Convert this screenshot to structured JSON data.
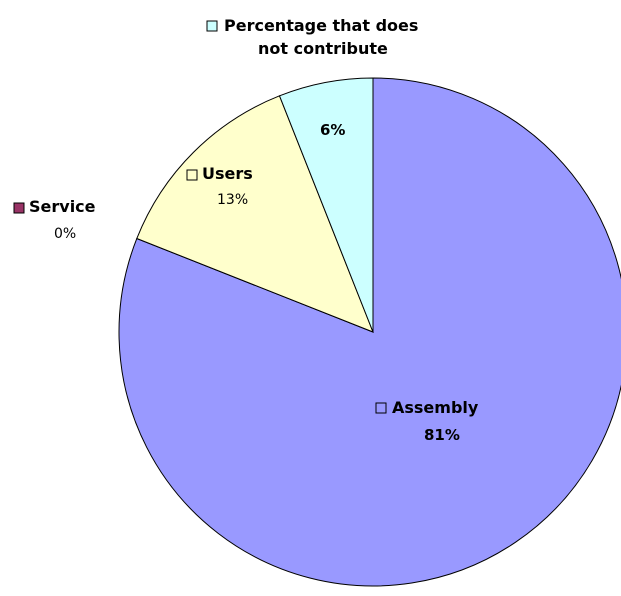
{
  "chart_data": {
    "type": "pie",
    "title": "",
    "slices": [
      {
        "name": "Assembly",
        "value": 81,
        "label": "81%",
        "color": "#9999ff"
      },
      {
        "name": "Service",
        "value": 0,
        "label": "0%",
        "color": "#993366"
      },
      {
        "name": "Users",
        "value": 13,
        "label": "13%",
        "color": "#ffffcc"
      },
      {
        "name": "Percentage that does not contribute",
        "value": 6,
        "label": "6%",
        "color": "#ccffff"
      }
    ],
    "legend": "none",
    "slice_outline_color": "#000000"
  }
}
